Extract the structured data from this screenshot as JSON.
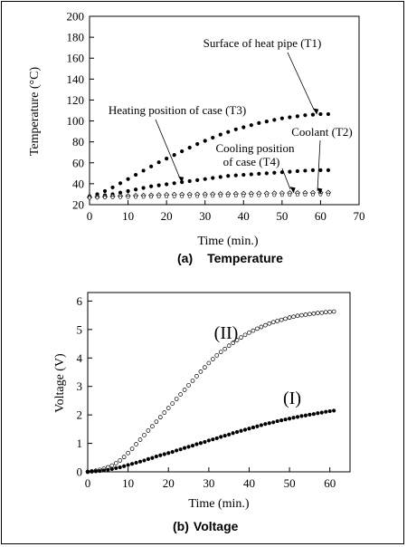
{
  "chart_data": [
    {
      "id": "temperature",
      "type": "scatter",
      "caption_label": "(a)",
      "caption_text": "Temperature",
      "xlabel": "Time (min.)",
      "ylabel": "Temperature (°C)",
      "xlim": [
        0,
        70
      ],
      "ylim": [
        20,
        200
      ],
      "xticks": [
        0,
        10,
        20,
        30,
        40,
        50,
        60,
        70
      ],
      "yticks": [
        20,
        40,
        60,
        80,
        100,
        120,
        140,
        160,
        180,
        200
      ],
      "grid": false,
      "series": [
        {
          "name": "Surface of heat pipe (T1)",
          "marker": "filled-circle",
          "x": [
            0,
            2,
            4,
            6,
            8,
            10,
            12,
            14,
            16,
            18,
            20,
            22,
            24,
            26,
            28,
            30,
            32,
            34,
            36,
            38,
            40,
            42,
            44,
            46,
            48,
            50,
            52,
            54,
            56,
            58,
            60,
            62
          ],
          "y": [
            28,
            30,
            33,
            36.5,
            40.5,
            44.5,
            48.5,
            52.5,
            56.5,
            60.5,
            64,
            67.5,
            71,
            74.5,
            78,
            81,
            84,
            87,
            89.5,
            92,
            94,
            96,
            98,
            99.5,
            101,
            102.5,
            103.5,
            104.5,
            105.5,
            106,
            106.5,
            106.5
          ]
        },
        {
          "name": "Heating position of case (T3)",
          "marker": "filled-circle",
          "x": [
            0,
            2,
            4,
            6,
            8,
            10,
            12,
            14,
            16,
            18,
            20,
            22,
            24,
            26,
            28,
            30,
            32,
            34,
            36,
            38,
            40,
            42,
            44,
            46,
            48,
            50,
            52,
            54,
            56,
            58,
            60,
            62
          ],
          "y": [
            27,
            28,
            29,
            30,
            31.5,
            33,
            34.5,
            36,
            37.5,
            38.5,
            39.5,
            40.5,
            41.5,
            42.5,
            43.5,
            44.5,
            45.5,
            46.5,
            47.5,
            48,
            48.5,
            49,
            49.5,
            50,
            50.5,
            51,
            51.5,
            52,
            52.5,
            53,
            53,
            53
          ]
        },
        {
          "name": "Cooling position of case (T4)",
          "marker": "open-diamond",
          "x": [
            0,
            2,
            4,
            6,
            8,
            10,
            12,
            14,
            16,
            18,
            20,
            22,
            24,
            26,
            28,
            30,
            32,
            34,
            36,
            38,
            40,
            42,
            44,
            46,
            48,
            50,
            52,
            54,
            56,
            58,
            60,
            62
          ],
          "y": [
            27,
            27.3,
            27.6,
            27.9,
            28.2,
            28.4,
            28.6,
            28.8,
            29,
            29.2,
            29.4,
            29.6,
            29.7,
            29.8,
            29.9,
            30,
            30.1,
            30.2,
            30.3,
            30.4,
            30.5,
            30.6,
            30.7,
            30.8,
            30.9,
            31,
            31.1,
            31.2,
            31.3,
            31.4,
            31.5,
            31.6
          ]
        },
        {
          "name": "Coolant (T2)",
          "marker": "small-circle",
          "x": [
            0,
            2,
            4,
            6,
            8,
            10,
            12,
            14,
            16,
            18,
            20,
            22,
            24,
            26,
            28,
            30,
            32,
            34,
            36,
            38,
            40,
            42,
            44,
            46,
            48,
            50,
            52,
            54,
            56,
            58,
            60,
            62
          ],
          "y": [
            26.5,
            26.7,
            26.9,
            27,
            27.1,
            27.2,
            27.3,
            27.4,
            27.5,
            27.6,
            27.7,
            27.8,
            27.9,
            28,
            28.1,
            28.2,
            28.3,
            28.4,
            28.5,
            28.6,
            28.7,
            28.8,
            28.9,
            29,
            29.1,
            29.2,
            29.3,
            29.4,
            29.5,
            29.6,
            29.7,
            29.8
          ]
        }
      ],
      "annotations": [
        {
          "text": "Surface of heat pipe (T1)",
          "series": 0,
          "target": [
            59,
            106
          ]
        },
        {
          "text": "Heating position of case (T3)",
          "series": 1,
          "target": [
            24,
            41
          ]
        },
        {
          "text": "Cooling position of case (T4)",
          "series": 2,
          "target": [
            53,
            31
          ]
        },
        {
          "text": "Coolant (T2)",
          "series": 3,
          "target": [
            60,
            30
          ]
        }
      ]
    },
    {
      "id": "voltage",
      "type": "scatter",
      "caption_label": "(b)",
      "caption_text": "Voltage",
      "xlabel": "Time (min.)",
      "ylabel": "Voltage (V)",
      "xlim": [
        0,
        65
      ],
      "ylim": [
        0,
        6.3
      ],
      "xticks": [
        0,
        10,
        20,
        30,
        40,
        50,
        60
      ],
      "yticks": [
        0,
        1,
        2,
        3,
        4,
        5,
        6
      ],
      "grid": false,
      "series": [
        {
          "name": "(II)",
          "marker": "open-circle",
          "x": [
            0,
            1,
            2,
            3,
            4,
            5,
            6,
            7,
            8,
            9,
            10,
            11,
            12,
            13,
            14,
            15,
            16,
            17,
            18,
            19,
            20,
            21,
            22,
            23,
            24,
            25,
            26,
            27,
            28,
            29,
            30,
            31,
            32,
            33,
            34,
            35,
            36,
            37,
            38,
            39,
            40,
            41,
            42,
            43,
            44,
            45,
            46,
            47,
            48,
            49,
            50,
            51,
            52,
            53,
            54,
            55,
            56,
            57,
            58,
            59,
            60,
            61
          ],
          "y": [
            0,
            0.02,
            0.04,
            0.07,
            0.11,
            0.16,
            0.22,
            0.3,
            0.4,
            0.52,
            0.66,
            0.81,
            0.97,
            1.13,
            1.29,
            1.45,
            1.6,
            1.76,
            1.92,
            2.08,
            2.24,
            2.4,
            2.56,
            2.72,
            2.88,
            3.04,
            3.2,
            3.36,
            3.52,
            3.67,
            3.82,
            3.96,
            4.09,
            4.21,
            4.32,
            4.43,
            4.53,
            4.63,
            4.72,
            4.81,
            4.89,
            4.96,
            5.03,
            5.09,
            5.15,
            5.21,
            5.26,
            5.3,
            5.34,
            5.38,
            5.42,
            5.45,
            5.48,
            5.5,
            5.52,
            5.54,
            5.56,
            5.58,
            5.59,
            5.61,
            5.62,
            5.63
          ]
        },
        {
          "name": "(I)",
          "marker": "filled-circle",
          "x": [
            0,
            1,
            2,
            3,
            4,
            5,
            6,
            7,
            8,
            9,
            10,
            11,
            12,
            13,
            14,
            15,
            16,
            17,
            18,
            19,
            20,
            21,
            22,
            23,
            24,
            25,
            26,
            27,
            28,
            29,
            30,
            31,
            32,
            33,
            34,
            35,
            36,
            37,
            38,
            39,
            40,
            41,
            42,
            43,
            44,
            45,
            46,
            47,
            48,
            49,
            50,
            51,
            52,
            53,
            54,
            55,
            56,
            57,
            58,
            59,
            60,
            61
          ],
          "y": [
            0,
            0.01,
            0.02,
            0.03,
            0.05,
            0.07,
            0.1,
            0.13,
            0.16,
            0.2,
            0.24,
            0.28,
            0.32,
            0.36,
            0.4,
            0.45,
            0.49,
            0.54,
            0.58,
            0.62,
            0.66,
            0.7,
            0.75,
            0.79,
            0.84,
            0.88,
            0.92,
            0.97,
            1.01,
            1.05,
            1.1,
            1.14,
            1.18,
            1.23,
            1.27,
            1.31,
            1.36,
            1.4,
            1.44,
            1.48,
            1.52,
            1.56,
            1.6,
            1.64,
            1.68,
            1.71,
            1.74,
            1.78,
            1.81,
            1.84,
            1.87,
            1.9,
            1.93,
            1.96,
            1.98,
            2.01,
            2.03,
            2.06,
            2.08,
            2.11,
            2.13,
            2.15
          ]
        }
      ],
      "annotations": [
        {
          "text": "(II)",
          "series": 0,
          "target": null
        },
        {
          "text": "(I)",
          "series": 1,
          "target": null
        }
      ]
    }
  ]
}
